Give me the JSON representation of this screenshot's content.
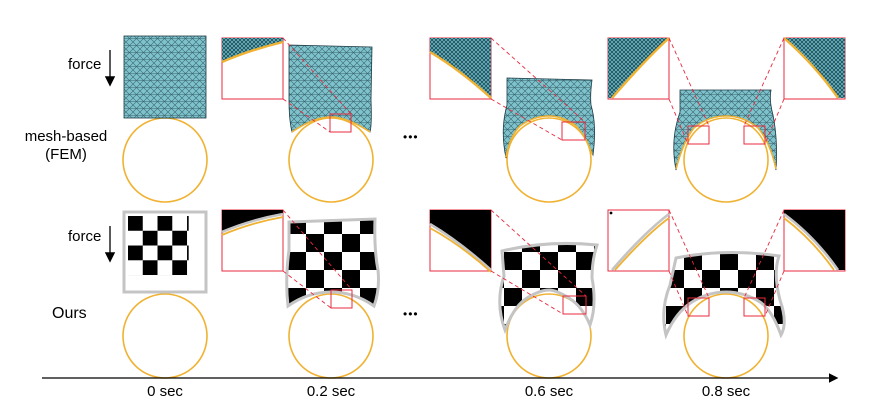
{
  "row_labels": {
    "force_top": "force",
    "mesh_line1": "mesh-based",
    "mesh_line2": "(FEM)",
    "force_bottom": "force",
    "ours": "Ours"
  },
  "ellipsis": "•••",
  "timeline": [
    "0 sec",
    "0.2 sec",
    "0.6 sec",
    "0.8 sec"
  ],
  "colors": {
    "mesh_fill": "#7ec3cc",
    "mesh_line": "#1d3a44",
    "obstacle": "#f0b232",
    "zoom_box": "#e8283c",
    "checker_dark": "#000000",
    "checker_light": "#ffffff",
    "checker_border": "#c4c4c4"
  }
}
